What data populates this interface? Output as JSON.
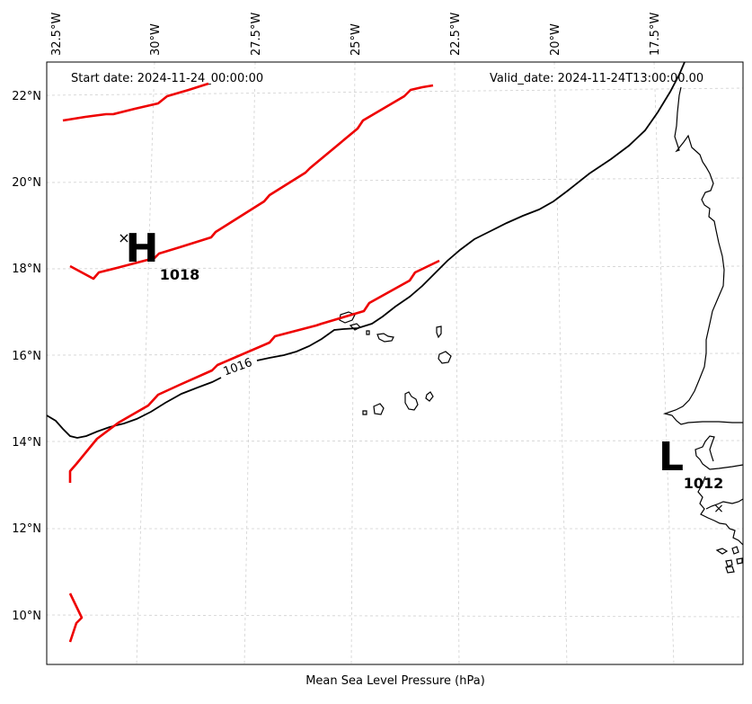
{
  "header": {
    "start_date": "Start date: 2024-11-24_00:00:00",
    "valid_date": "Valid_date: 2024-11-24T13:00:00.00"
  },
  "caption": "Mean Sea Level Pressure (hPa)",
  "axes": {
    "lon_labels": [
      "32.5°W",
      "30°W",
      "27.5°W",
      "25°W",
      "22.5°W",
      "20°W",
      "17.5°W"
    ],
    "lat_labels": [
      "22°N",
      "20°N",
      "18°N",
      "16°N",
      "14°N",
      "12°N",
      "10°N"
    ]
  },
  "pressure_centers": {
    "high": {
      "letter": "H",
      "value": "1018",
      "marker": "×"
    },
    "low": {
      "letter": "L",
      "value": "1012",
      "marker": "×"
    }
  },
  "isobar_label": "1016",
  "colors": {
    "front": "#ee0000",
    "isobar": "#000000",
    "grid": "#d0d0d0"
  }
}
